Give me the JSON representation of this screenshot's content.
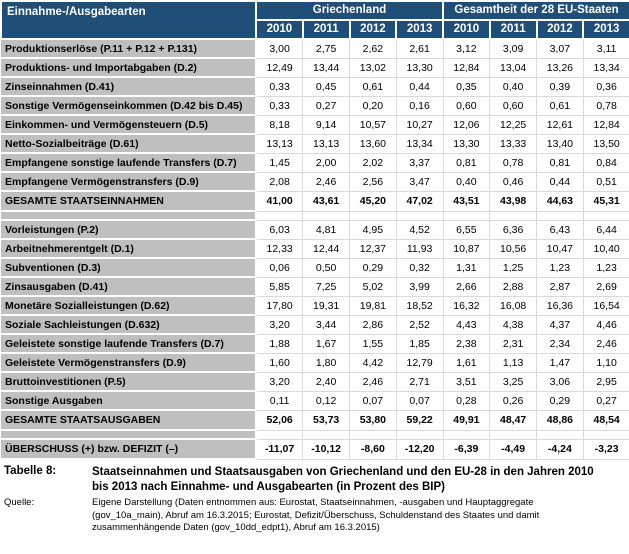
{
  "chart_data": {
    "type": "table",
    "title_cell": "Einnahme-/Ausgabearten",
    "unit_note": "in Prozent des BIP",
    "groups": [
      {
        "label": "Griechenland",
        "years": [
          "2010",
          "2011",
          "2012",
          "2013"
        ]
      },
      {
        "label": "Gesamtheit der 28 EU-Staaten",
        "years": [
          "2010",
          "2011",
          "2012",
          "2013"
        ]
      }
    ],
    "sections": [
      {
        "name": "einnahmen",
        "rows": [
          {
            "label": "Produktionserlöse (P.11 + P.12 + P.131)",
            "values": [
              "3,00",
              "2,75",
              "2,62",
              "2,61",
              "3,12",
              "3,09",
              "3,07",
              "3,11"
            ]
          },
          {
            "label": "Produktions- und Importabgaben (D.2)",
            "values": [
              "12,49",
              "13,44",
              "13,02",
              "13,30",
              "12,84",
              "13,04",
              "13,26",
              "13,34"
            ]
          },
          {
            "label": "Zinseinnahmen (D.41)",
            "values": [
              "0,33",
              "0,45",
              "0,61",
              "0,44",
              "0,35",
              "0,40",
              "0,39",
              "0,36"
            ]
          },
          {
            "label": "Sonstige Vermögenseinkommen (D.42 bis D.45)",
            "values": [
              "0,33",
              "0,27",
              "0,20",
              "0,16",
              "0,60",
              "0,60",
              "0,61",
              "0,78"
            ]
          },
          {
            "label": "Einkommen- und Vermögensteuern (D.5)",
            "values": [
              "8,18",
              "9,14",
              "10,57",
              "10,27",
              "12,06",
              "12,25",
              "12,61",
              "12,84"
            ]
          },
          {
            "label": "Netto-Sozialbeiträge (D.61)",
            "values": [
              "13,13",
              "13,13",
              "13,60",
              "13,34",
              "13,30",
              "13,33",
              "13,40",
              "13,50"
            ]
          },
          {
            "label": "Empfangene sonstige laufende Transfers (D.7)",
            "values": [
              "1,45",
              "2,00",
              "2,02",
              "3,37",
              "0,81",
              "0,78",
              "0,81",
              "0,84"
            ]
          },
          {
            "label": "Empfangene Vermögenstransfers (D.9)",
            "values": [
              "2,08",
              "2,46",
              "2,56",
              "3,47",
              "0,40",
              "0,46",
              "0,44",
              "0,51"
            ]
          }
        ],
        "total": {
          "label": "GESAMTE STAATSEINNAHMEN",
          "values": [
            "41,00",
            "43,61",
            "45,20",
            "47,02",
            "43,51",
            "43,98",
            "44,63",
            "45,31"
          ]
        }
      },
      {
        "name": "ausgaben",
        "rows": [
          {
            "label": "Vorleistungen (P.2)",
            "values": [
              "6,03",
              "4,81",
              "4,95",
              "4,52",
              "6,55",
              "6,36",
              "6,43",
              "6,44"
            ]
          },
          {
            "label": "Arbeitnehmerentgelt (D.1)",
            "values": [
              "12,33",
              "12,44",
              "12,37",
              "11,93",
              "10,87",
              "10,56",
              "10,47",
              "10,40"
            ]
          },
          {
            "label": "Subventionen (D.3)",
            "values": [
              "0,06",
              "0,50",
              "0,29",
              "0,32",
              "1,31",
              "1,25",
              "1,23",
              "1,23"
            ]
          },
          {
            "label": "Zinsausgaben (D.41)",
            "values": [
              "5,85",
              "7,25",
              "5,02",
              "3,99",
              "2,66",
              "2,88",
              "2,87",
              "2,69"
            ]
          },
          {
            "label": "Monetäre Sozialleistungen (D.62)",
            "values": [
              "17,80",
              "19,31",
              "19,81",
              "18,52",
              "16,32",
              "16,08",
              "16,36",
              "16,54"
            ]
          },
          {
            "label": "Soziale Sachleistungen (D.632)",
            "values": [
              "3,20",
              "3,44",
              "2,86",
              "2,52",
              "4,43",
              "4,38",
              "4,37",
              "4,46"
            ]
          },
          {
            "label": "Geleistete sonstige laufende Transfers (D.7)",
            "values": [
              "1,88",
              "1,67",
              "1,55",
              "1,85",
              "2,38",
              "2,31",
              "2,34",
              "2,46"
            ]
          },
          {
            "label": "Geleistete Vermögenstransfers (D.9)",
            "values": [
              "1,60",
              "1,80",
              "4,42",
              "12,79",
              "1,61",
              "1,13",
              "1,47",
              "1,10"
            ]
          },
          {
            "label": "Bruttoinvestitionen (P.5)",
            "values": [
              "3,20",
              "2,40",
              "2,46",
              "2,71",
              "3,51",
              "3,25",
              "3,06",
              "2,95"
            ]
          },
          {
            "label": "Sonstige Ausgaben",
            "values": [
              "0,11",
              "0,12",
              "0,07",
              "0,07",
              "0,28",
              "0,26",
              "0,29",
              "0,27"
            ]
          }
        ],
        "total": {
          "label": "GESAMTE STAATSAUSGABEN",
          "values": [
            "52,06",
            "53,73",
            "53,80",
            "59,22",
            "49,91",
            "48,47",
            "48,86",
            "48,54"
          ]
        }
      },
      {
        "name": "saldo",
        "rows": [],
        "total": {
          "label": "ÜBERSCHUSS (+) bzw. DEFIZIT (–)",
          "values": [
            "-11,07",
            "-10,12",
            "-8,60",
            "-12,20",
            "-6,39",
            "-4,49",
            "-4,24",
            "-3,23"
          ]
        }
      }
    ]
  },
  "footer": {
    "table_label": "Tabelle 8:",
    "caption": "Staatseinnahmen und Staatsausgaben von Griechenland und den EU-28 in den Jahren 2010 bis 2013 nach Einnahme- und Ausgabearten (in Prozent des BIP)",
    "source_label": "Quelle:",
    "source_text": "Eigene Darstellung (Daten entnommen aus: Eurostat, Staatseinnahmen, -ausgaben und Hauptaggregate (gov_10a_main), Abruf am 16.3.2015; Eurostat, Defizit/Überschuss, Schuldenstand des Staates und damit zusammenhängende Daten (gov_10dd_edpt1), Abruf am 16.3.2015)"
  },
  "colors": {
    "header_blue": "#1F4E79",
    "label_gray": "#BFBFBF",
    "border_light": "#D9D9D9"
  }
}
